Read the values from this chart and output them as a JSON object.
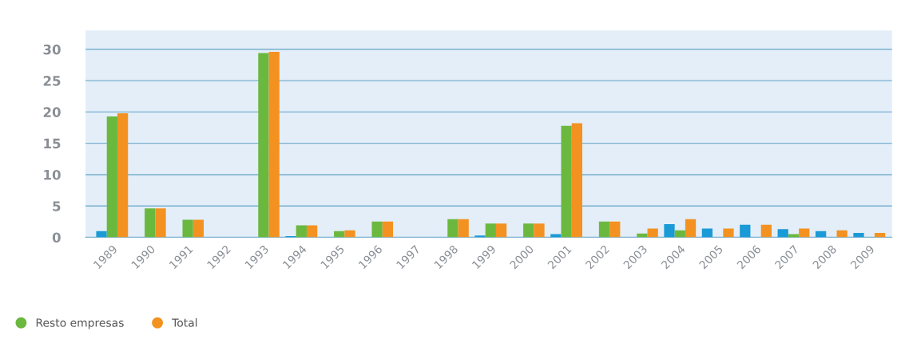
{
  "chart_data": {
    "type": "bar",
    "categories": [
      "1989",
      "1990",
      "1991",
      "1992",
      "1993",
      "1994",
      "1995",
      "1996",
      "1997",
      "1998",
      "1999",
      "2000",
      "2001",
      "2002",
      "2003",
      "2004",
      "2005",
      "2006",
      "2007",
      "2008",
      "2009"
    ],
    "series": [
      {
        "color": "#1a9ad6",
        "values": [
          1.0,
          null,
          null,
          null,
          null,
          0.2,
          null,
          null,
          null,
          null,
          0.3,
          null,
          0.5,
          null,
          null,
          2.1,
          1.4,
          2.0,
          1.3,
          1.0,
          0.7
        ]
      },
      {
        "name": "Resto empresas",
        "color": "#6bb83f",
        "values": [
          19.3,
          4.6,
          2.8,
          null,
          29.4,
          1.9,
          1.0,
          2.5,
          null,
          2.9,
          2.2,
          2.2,
          17.8,
          2.5,
          0.6,
          1.1,
          null,
          null,
          0.5,
          null,
          null
        ]
      },
      {
        "name": "Total",
        "color": "#f39220",
        "values": [
          19.8,
          4.6,
          2.8,
          null,
          29.6,
          1.9,
          1.1,
          2.5,
          null,
          2.9,
          2.2,
          2.2,
          18.2,
          2.5,
          1.4,
          2.9,
          1.4,
          2.0,
          1.4,
          1.1,
          0.7
        ]
      }
    ],
    "ylim": [
      0,
      33
    ],
    "yticks": [
      0,
      5,
      10,
      15,
      20,
      25,
      30
    ],
    "grid": "y",
    "legend": "bottom left",
    "marker": "circle"
  }
}
